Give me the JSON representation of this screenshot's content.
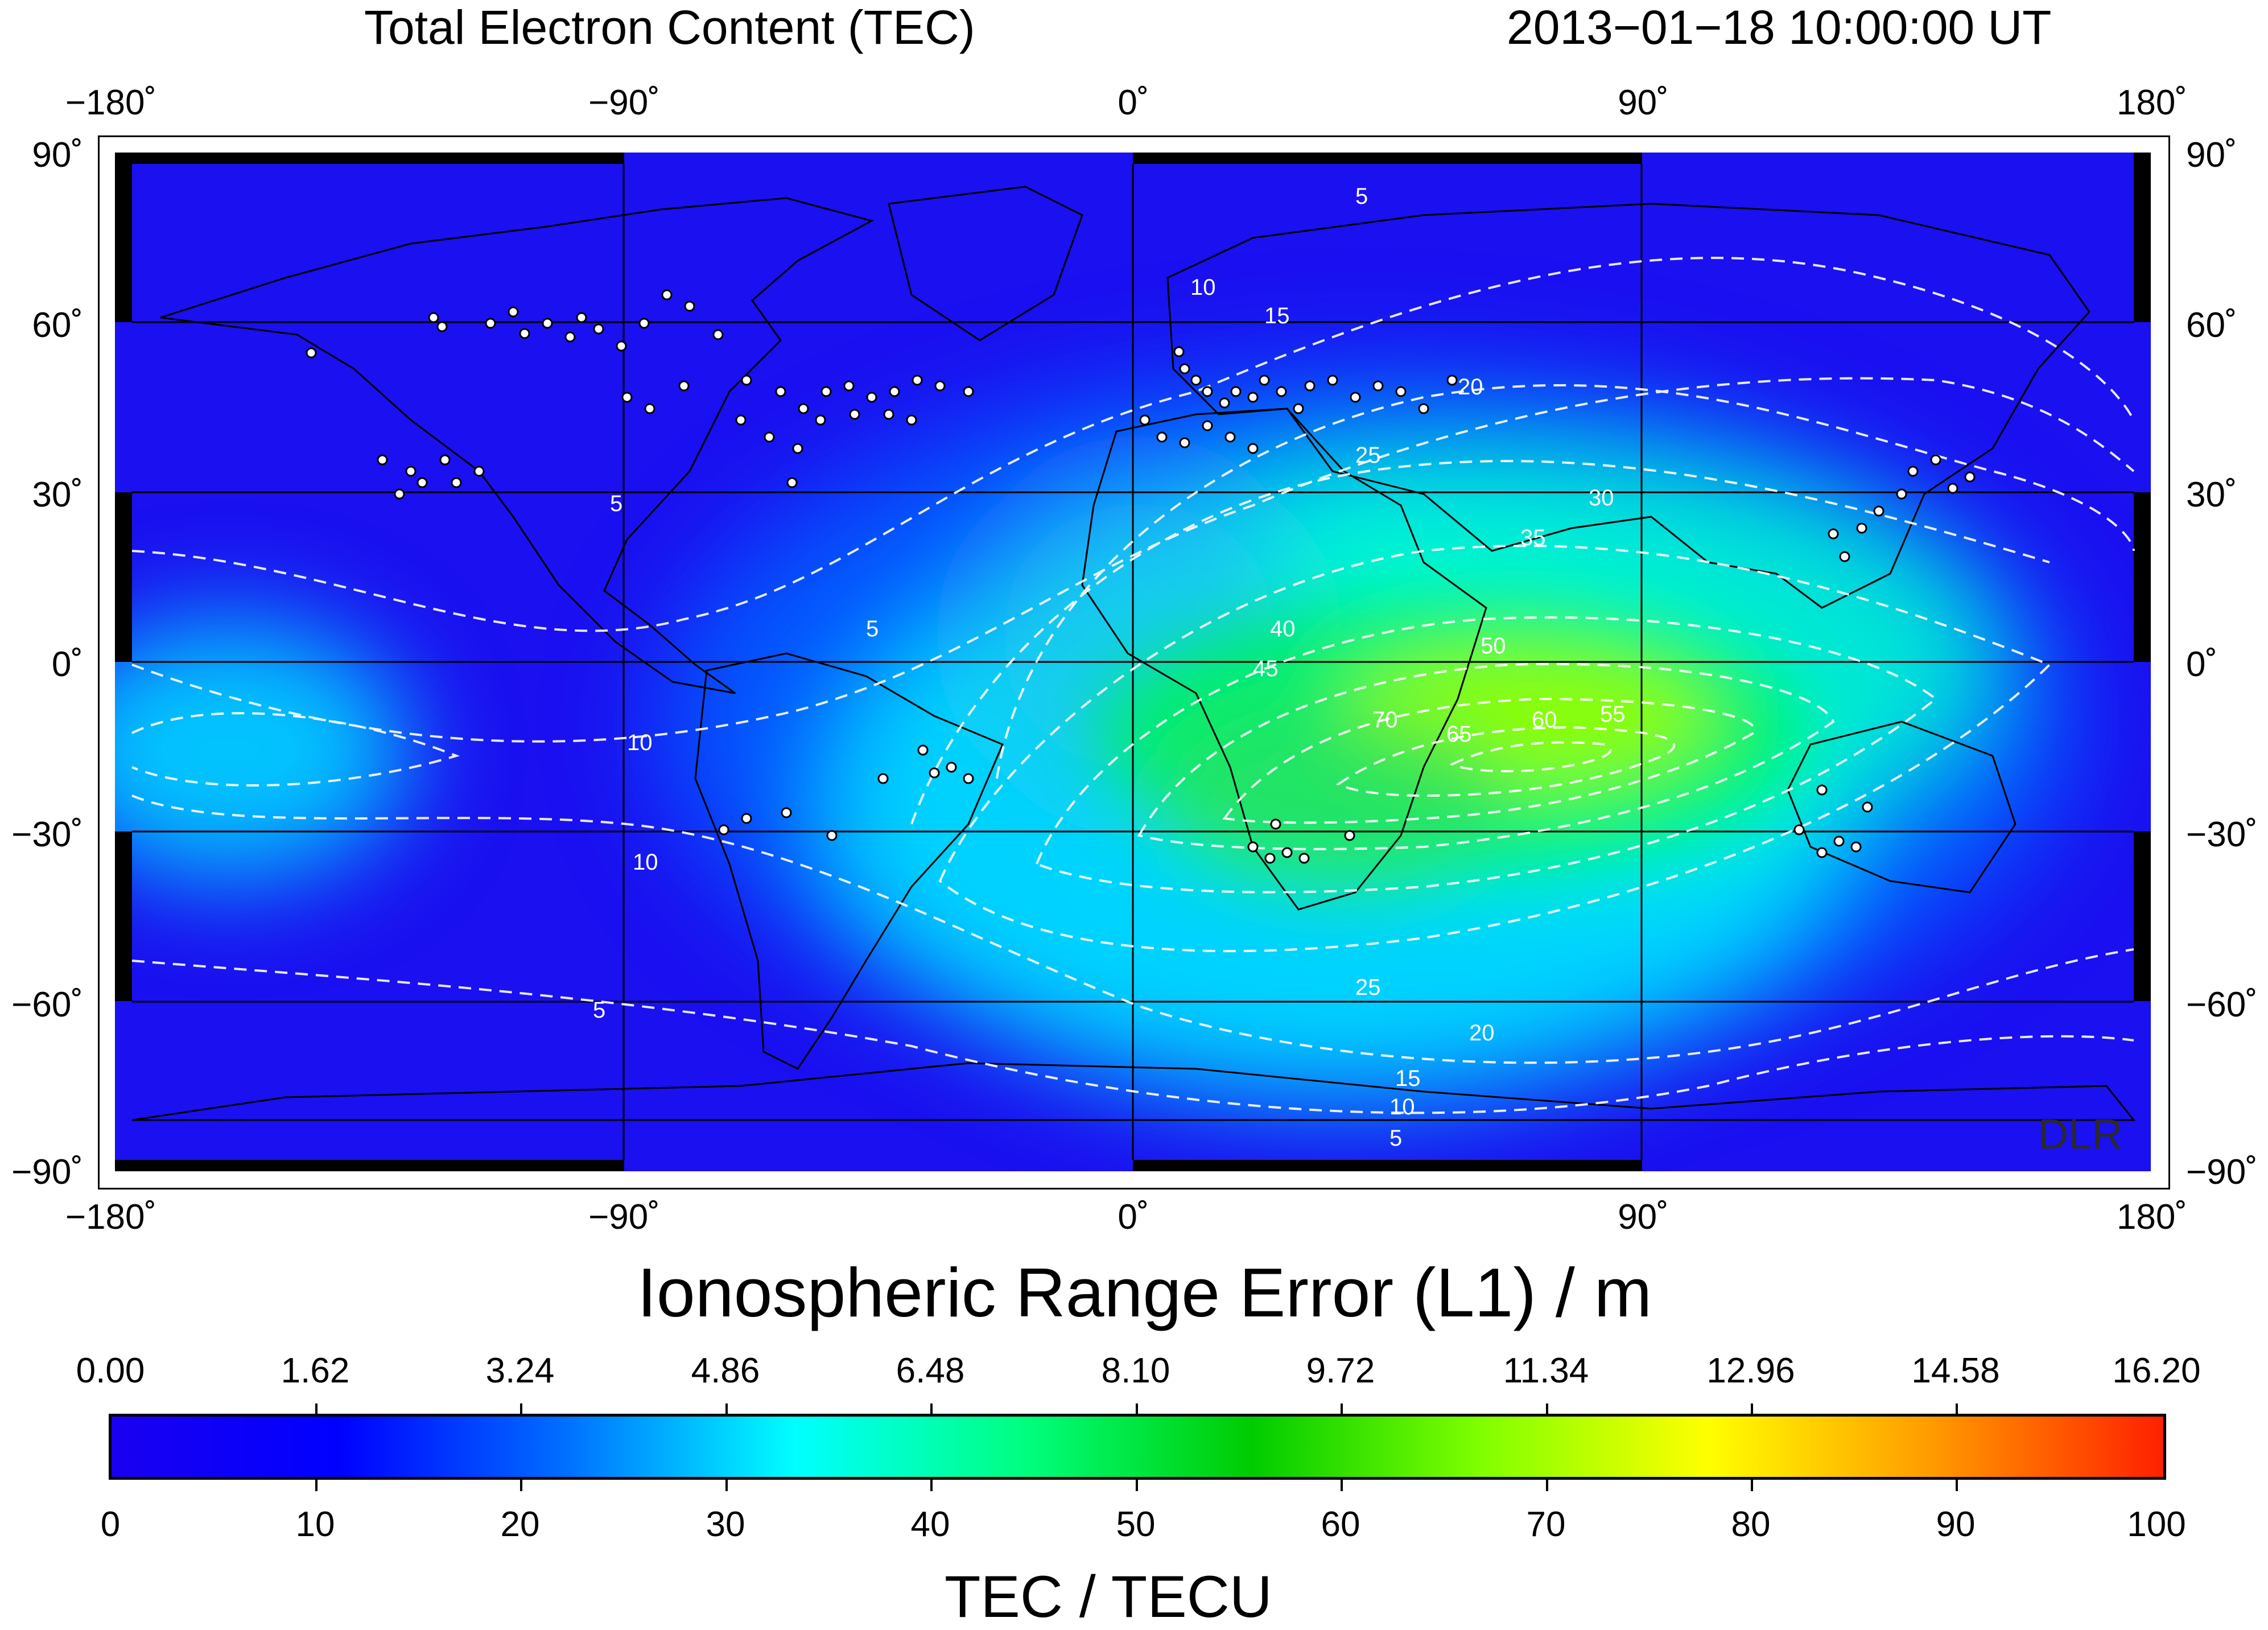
{
  "header": {
    "title": "Total Electron Content (TEC)",
    "timestamp": "2013−01−18  10:00:00 UT"
  },
  "map": {
    "lon_labels": [
      "−180˚",
      "−90˚",
      "0˚",
      "90˚",
      "180˚"
    ],
    "lat_labels": [
      "90˚",
      "60˚",
      "30˚",
      "0˚",
      "−30˚",
      "−60˚",
      "−90˚"
    ],
    "watermark": "DLR",
    "contour_levels": [
      5,
      10,
      15,
      20,
      25,
      30,
      35,
      40,
      45,
      50,
      55,
      60,
      65,
      70
    ],
    "contour_color": "#ffffff",
    "station_marker_color": "#ffffff",
    "background_color": "#1a10f0"
  },
  "colorbar": {
    "range_title": "Ionospheric Range Error (L1) / m",
    "range_ticks": [
      "0.00",
      "1.62",
      "3.24",
      "4.86",
      "6.48",
      "8.10",
      "9.72",
      "11.34",
      "12.96",
      "14.58",
      "16.20"
    ],
    "tec_ticks": [
      "0",
      "10",
      "20",
      "30",
      "40",
      "50",
      "60",
      "70",
      "80",
      "90",
      "100"
    ],
    "tec_title": "TEC / TECU",
    "stops": [
      "#1a00f0",
      "#0000ff",
      "#0070ff",
      "#00ffff",
      "#00ff80",
      "#00cc00",
      "#80ff00",
      "#ffff00",
      "#ff9900",
      "#ff2000"
    ]
  }
}
